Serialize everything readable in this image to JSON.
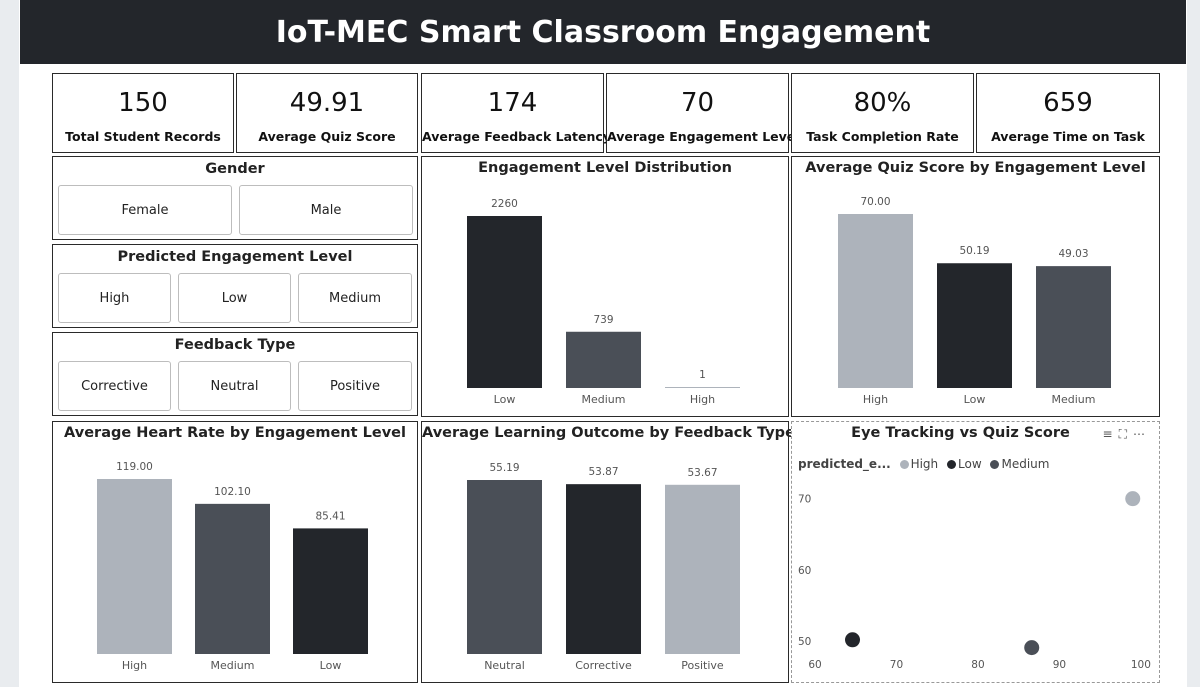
{
  "title": "IoT-MEC Smart Classroom Engagement",
  "kpis": [
    {
      "value": "150",
      "label": "Total Student Records"
    },
    {
      "value": "49.91",
      "label": "Average Quiz Score"
    },
    {
      "value": "174",
      "label": "Average Feedback Latency"
    },
    {
      "value": "70",
      "label": "Average Engagement Level"
    },
    {
      "value": "80%",
      "label": "Task Completion Rate"
    },
    {
      "value": "659",
      "label": "Average Time on Task"
    }
  ],
  "slicers": {
    "gender": {
      "title": "Gender",
      "options": [
        "Female",
        "Male"
      ]
    },
    "predicted": {
      "title": "Predicted Engagement Level",
      "options": [
        "High",
        "Low",
        "Medium"
      ]
    },
    "feedback": {
      "title": "Feedback Type",
      "options": [
        "Corrective",
        "Neutral",
        "Positive"
      ]
    }
  },
  "colors": {
    "low": "#23262b",
    "medium": "#4a4f57",
    "high": "#adb3bb",
    "axis_text": "#555555"
  },
  "scatter_icons": [
    "filter-icon",
    "expand-icon",
    "more-options-icon"
  ],
  "chart_data": [
    {
      "type": "bar",
      "title": "Engagement Level Distribution",
      "categories": [
        "Low",
        "Medium",
        "High"
      ],
      "values": [
        2260,
        739,
        1
      ],
      "value_labels": [
        "2260",
        "739",
        "1"
      ],
      "colors": [
        "#23262b",
        "#4a4f57",
        "#adb3bb"
      ],
      "ylim": [
        0,
        2260
      ]
    },
    {
      "type": "bar",
      "title": "Average Quiz Score by Engagement Level",
      "categories": [
        "High",
        "Low",
        "Medium"
      ],
      "values": [
        70.0,
        50.19,
        49.03
      ],
      "value_labels": [
        "70.00",
        "50.19",
        "49.03"
      ],
      "colors": [
        "#adb3bb",
        "#23262b",
        "#4a4f57"
      ],
      "ylim": [
        0,
        70
      ]
    },
    {
      "type": "bar",
      "title": "Average Heart Rate by Engagement Level",
      "categories": [
        "High",
        "Medium",
        "Low"
      ],
      "values": [
        119.0,
        102.1,
        85.41
      ],
      "value_labels": [
        "119.00",
        "102.10",
        "85.41"
      ],
      "colors": [
        "#adb3bb",
        "#4a4f57",
        "#23262b"
      ],
      "ylim": [
        0,
        119
      ]
    },
    {
      "type": "bar",
      "title": "Average Learning Outcome by Feedback Type",
      "categories": [
        "Neutral",
        "Corrective",
        "Positive"
      ],
      "values": [
        55.19,
        53.87,
        53.67
      ],
      "value_labels": [
        "55.19",
        "53.87",
        "53.67"
      ],
      "colors": [
        "#4a4f57",
        "#23262b",
        "#adb3bb"
      ],
      "ylim": [
        0,
        55.19
      ]
    },
    {
      "type": "scatter",
      "title": "Eye Tracking vs Quiz Score",
      "legend_title": "predicted_e...",
      "legend": [
        {
          "name": "High",
          "color": "#adb3bb"
        },
        {
          "name": "Low",
          "color": "#23262b"
        },
        {
          "name": "Medium",
          "color": "#4a4f57"
        }
      ],
      "x_ticks": [
        60,
        70,
        80,
        90,
        100
      ],
      "y_ticks": [
        50,
        60,
        70
      ],
      "xlim": [
        58.4,
        102.1
      ],
      "ylim": [
        45.4,
        72.9
      ],
      "points": [
        {
          "x": 99,
          "y": 70,
          "series": "High"
        },
        {
          "x": 64.6,
          "y": 50.2,
          "series": "Low"
        },
        {
          "x": 86.6,
          "y": 49.1,
          "series": "Medium"
        }
      ]
    }
  ]
}
